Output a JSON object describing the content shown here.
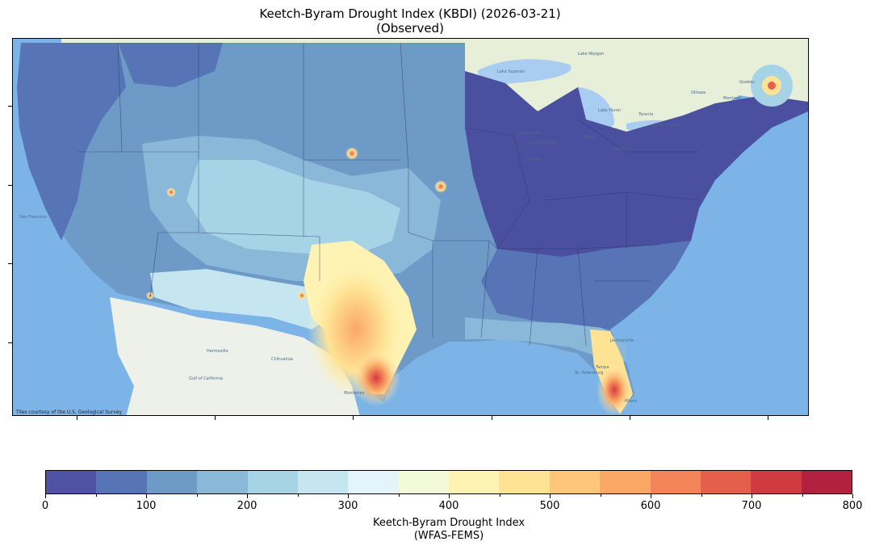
{
  "title": {
    "line1": "Keetch-Byram Drought Index (KBDI) (2026-03-21)",
    "line2": "(Observed)"
  },
  "map": {
    "attribution": "Tiles courtesy of the U.S. Geological Survey",
    "basemap_labels": [
      "Lake Superior",
      "Lake Huron",
      "Lake Michigan",
      "Lake Ontario",
      "Lake Erie",
      "Lake Nipigon",
      "Milwaukee",
      "Chicago",
      "Detroit",
      "Toronto",
      "Ottawa",
      "Montreal",
      "Quebec",
      "San Francisco",
      "Chihuahua",
      "Hermosillo",
      "Monterrey",
      "Tampa",
      "Miami",
      "Jacksonville",
      "Gulf of California",
      "St. Petersburg"
    ],
    "colors": {
      "ocean": "#5ea3e0",
      "land_mexico": "#eef0ea",
      "land_canada": "#e7efd8",
      "lakes": "#a9cdf0"
    }
  },
  "colorbar": {
    "title_line1": "Keetch-Byram Drought Index",
    "title_line2": "(WFAS-FEMS)",
    "ticks": [
      "0",
      "100",
      "200",
      "300",
      "400",
      "500",
      "600",
      "700",
      "800"
    ],
    "range": [
      0,
      800
    ],
    "step": 50,
    "colors": [
      "#5052a3",
      "#5674b6",
      "#6e9ac8",
      "#8ab8d8",
      "#a6d3e6",
      "#c5e6f1",
      "#e4f4fb",
      "#f3fad7",
      "#fff3b3",
      "#fee395",
      "#fdc67a",
      "#fba866",
      "#f4855a",
      "#e4604b",
      "#cf3b41",
      "#b2213f"
    ]
  }
}
